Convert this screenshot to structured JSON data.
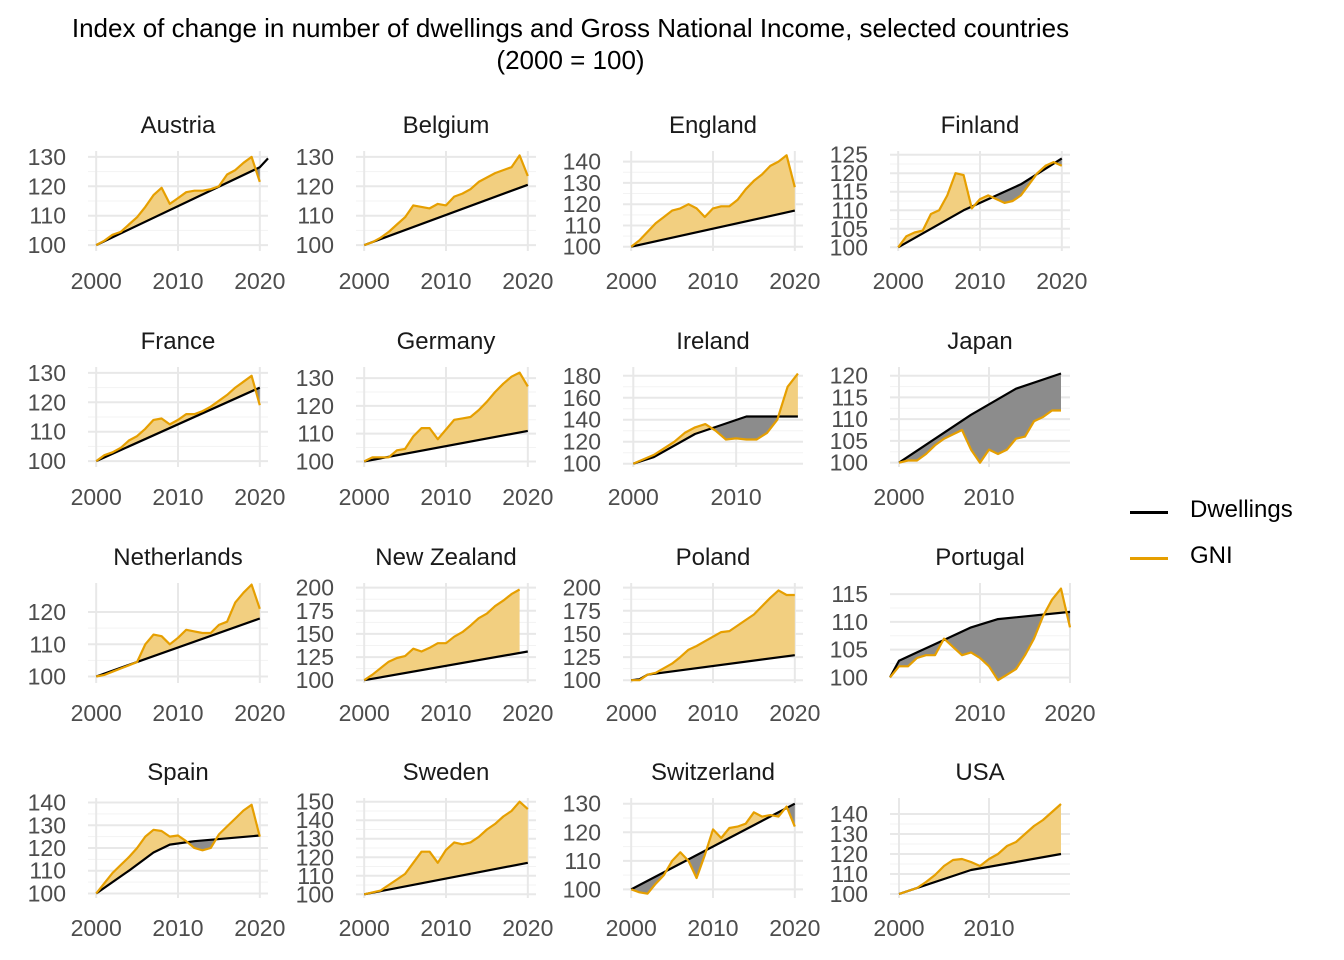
{
  "chart_data": {
    "type": "area",
    "title": "Index of change in number of dwellings and Gross National Income, selected countries\n(2000 = 100)",
    "legend": {
      "position": "right",
      "items": [
        {
          "name": "Dwellings",
          "color": "#000000"
        },
        {
          "name": "GNI",
          "color": "#E69F00"
        }
      ]
    },
    "colors": {
      "dwellings": "#000000",
      "gni": "#E69F00",
      "gni_above_fill": "#F2CF80",
      "dwellings_above_fill": "#8C8C8C",
      "grid": "#E8E8E8"
    },
    "grid": true,
    "panels": [
      {
        "country": "Austria",
        "xlim": [
          1999,
          2021
        ],
        "xticks": [
          2000,
          2010,
          2020
        ],
        "ylim": [
          98,
          132
        ],
        "yticks": [
          100,
          110,
          120,
          130
        ],
        "x_dw": [
          2000,
          2020,
          2021
        ],
        "dwellings": [
          100,
          126.5,
          129.5
        ],
        "x_gni": [
          2000,
          2001,
          2002,
          2003,
          2004,
          2005,
          2006,
          2007,
          2008,
          2009,
          2010,
          2011,
          2012,
          2013,
          2014,
          2015,
          2016,
          2017,
          2018,
          2019,
          2020
        ],
        "gni": [
          100,
          101.5,
          103.5,
          104.5,
          107,
          109.5,
          113,
          117,
          119.5,
          114,
          116,
          118,
          118.5,
          118.5,
          119,
          120,
          124,
          125.5,
          128,
          130,
          121.5
        ]
      },
      {
        "country": "Belgium",
        "xlim": [
          1999,
          2021
        ],
        "xticks": [
          2000,
          2010,
          2020
        ],
        "ylim": [
          98,
          132
        ],
        "yticks": [
          100,
          110,
          120,
          130
        ],
        "x_dw": [
          2000,
          2020
        ],
        "dwellings": [
          100,
          120.5
        ],
        "x_gni": [
          2000,
          2001,
          2002,
          2003,
          2004,
          2005,
          2006,
          2007,
          2008,
          2009,
          2010,
          2011,
          2012,
          2013,
          2014,
          2015,
          2016,
          2017,
          2018,
          2019,
          2020
        ],
        "gni": [
          100,
          101,
          102.5,
          104.5,
          107,
          109.5,
          113.5,
          113,
          112.5,
          114,
          113.5,
          116.5,
          117.5,
          119,
          121.5,
          123,
          124.5,
          125.5,
          126.5,
          130.5,
          123.5
        ]
      },
      {
        "country": "England",
        "xlim": [
          1999,
          2021
        ],
        "xticks": [
          2000,
          2010,
          2020
        ],
        "ylim": [
          98,
          145
        ],
        "yticks": [
          100,
          110,
          120,
          130,
          140
        ],
        "x_dw": [
          2000,
          2020
        ],
        "dwellings": [
          100,
          117
        ],
        "x_gni": [
          2000,
          2001,
          2002,
          2003,
          2004,
          2005,
          2006,
          2007,
          2008,
          2009,
          2010,
          2011,
          2012,
          2013,
          2014,
          2015,
          2016,
          2017,
          2018,
          2019,
          2020
        ],
        "gni": [
          100,
          103,
          107,
          111,
          114,
          117,
          118,
          120,
          118,
          114,
          118,
          119,
          119,
          122,
          127,
          131,
          134,
          138,
          140,
          143,
          128
        ]
      },
      {
        "country": "Finland",
        "xlim": [
          1999,
          2021
        ],
        "xticks": [
          2000,
          2010,
          2020
        ],
        "ylim": [
          99,
          126
        ],
        "yticks": [
          100,
          105,
          110,
          115,
          120,
          125
        ],
        "x_dw": [
          2000,
          2008,
          2010,
          2013,
          2015,
          2020
        ],
        "dwellings": [
          100,
          110,
          112,
          115,
          117,
          124
        ],
        "x_gni": [
          2000,
          2001,
          2002,
          2003,
          2004,
          2005,
          2006,
          2007,
          2008,
          2009,
          2010,
          2011,
          2012,
          2013,
          2014,
          2015,
          2016,
          2017,
          2018,
          2019,
          2020
        ],
        "gni": [
          100,
          103,
          104,
          104.5,
          109,
          110,
          114,
          120,
          119.5,
          110.5,
          113,
          114,
          113,
          112,
          112.5,
          114,
          117,
          120,
          122,
          123,
          122
        ]
      },
      {
        "country": "France",
        "xlim": [
          1999,
          2021
        ],
        "xticks": [
          2000,
          2010,
          2020
        ],
        "ylim": [
          98,
          132
        ],
        "yticks": [
          100,
          110,
          120,
          130
        ],
        "x_dw": [
          2000,
          2020
        ],
        "dwellings": [
          100,
          125
        ],
        "x_gni": [
          2000,
          2001,
          2002,
          2003,
          2004,
          2005,
          2006,
          2007,
          2008,
          2009,
          2010,
          2011,
          2012,
          2013,
          2014,
          2015,
          2016,
          2017,
          2018,
          2019,
          2020
        ],
        "gni": [
          100,
          102,
          103,
          104.5,
          107,
          108.5,
          111,
          114,
          114.5,
          112.5,
          114,
          116,
          116,
          117,
          118.5,
          120.5,
          122.5,
          125,
          127,
          129,
          119
        ]
      },
      {
        "country": "Germany",
        "xlim": [
          1999,
          2021
        ],
        "xticks": [
          2000,
          2010,
          2020
        ],
        "ylim": [
          98,
          134
        ],
        "yticks": [
          100,
          110,
          120,
          130
        ],
        "x_dw": [
          2000,
          2020
        ],
        "dwellings": [
          100,
          111
        ],
        "x_gni": [
          2000,
          2001,
          2002,
          2003,
          2004,
          2005,
          2006,
          2007,
          2008,
          2009,
          2010,
          2011,
          2012,
          2013,
          2014,
          2015,
          2016,
          2017,
          2018,
          2019,
          2020
        ],
        "gni": [
          100,
          101.5,
          101.5,
          101.5,
          104,
          104.5,
          109,
          112,
          112,
          108,
          111.5,
          115,
          115.5,
          116,
          118.5,
          121.5,
          125,
          128,
          130.5,
          132,
          127
        ]
      },
      {
        "country": "Ireland",
        "xlim": [
          1999,
          2016.5
        ],
        "xticks": [
          2000,
          2010
        ],
        "ylim": [
          97,
          188
        ],
        "yticks": [
          100,
          120,
          140,
          160,
          180
        ],
        "x_dw": [
          2000,
          2002,
          2006,
          2011,
          2016
        ],
        "dwellings": [
          100,
          106,
          127,
          143,
          143
        ],
        "x_gni": [
          2000,
          2001,
          2002,
          2003,
          2004,
          2005,
          2006,
          2007,
          2008,
          2009,
          2010,
          2011,
          2012,
          2013,
          2014,
          2015,
          2016
        ],
        "gni": [
          100,
          104,
          108,
          114,
          120,
          128,
          133,
          136,
          130,
          122,
          123,
          122,
          122,
          128,
          140,
          170,
          182
        ]
      },
      {
        "country": "Japan",
        "xlim": [
          1999,
          2019
        ],
        "xticks": [
          2000,
          2010
        ],
        "ylim": [
          99,
          122
        ],
        "yticks": [
          100,
          105,
          110,
          115,
          120
        ],
        "x_dw": [
          2000,
          2008,
          2013,
          2018
        ],
        "dwellings": [
          100,
          111,
          117,
          120.5
        ],
        "x_gni": [
          2000,
          2001,
          2002,
          2003,
          2004,
          2005,
          2006,
          2007,
          2008,
          2009,
          2010,
          2011,
          2012,
          2013,
          2014,
          2015,
          2016,
          2017,
          2018
        ],
        "gni": [
          100,
          100.5,
          100.5,
          102,
          104,
          105.5,
          106.5,
          107.5,
          103,
          100,
          103,
          102,
          103,
          105.5,
          106,
          109.5,
          110.5,
          112,
          112
        ]
      },
      {
        "country": "Netherlands",
        "xlim": [
          1999,
          2021
        ],
        "xticks": [
          2000,
          2010,
          2020
        ],
        "ylim": [
          98,
          129
        ],
        "yticks": [
          100,
          110,
          120
        ],
        "x_dw": [
          2000,
          2020
        ],
        "dwellings": [
          100,
          118
        ],
        "x_gni": [
          2000,
          2001,
          2002,
          2003,
          2004,
          2005,
          2006,
          2007,
          2008,
          2009,
          2010,
          2011,
          2012,
          2013,
          2014,
          2015,
          2016,
          2017,
          2018,
          2019,
          2020
        ],
        "gni": [
          100,
          100.5,
          101.5,
          102.5,
          103.5,
          104.5,
          110,
          113,
          112.5,
          110,
          112,
          114.5,
          114,
          113.5,
          113.5,
          116,
          117,
          123,
          126,
          128.5,
          121
        ]
      },
      {
        "country": "New Zealand",
        "xlim": [
          1999,
          2021
        ],
        "xticks": [
          2000,
          2010,
          2020
        ],
        "ylim": [
          97,
          205
        ],
        "yticks": [
          100,
          125,
          150,
          175,
          200
        ],
        "x_dw": [
          2000,
          2020
        ],
        "dwellings": [
          100,
          131
        ],
        "x_gni": [
          2000,
          2001,
          2002,
          2003,
          2004,
          2005,
          2006,
          2007,
          2008,
          2009,
          2010,
          2011,
          2012,
          2013,
          2014,
          2015,
          2016,
          2017,
          2018,
          2019
        ],
        "gni": [
          100,
          106,
          113,
          120,
          124,
          126,
          134,
          131,
          135,
          140,
          140,
          147,
          152,
          159,
          167,
          172,
          180,
          186,
          193,
          198
        ]
      },
      {
        "country": "Poland",
        "xlim": [
          1999,
          2021
        ],
        "xticks": [
          2000,
          2010,
          2020
        ],
        "ylim": [
          97,
          205
        ],
        "yticks": [
          100,
          125,
          150,
          175,
          200
        ],
        "x_dw": [
          2000,
          2001,
          2002,
          2020
        ],
        "dwellings": [
          100,
          101,
          106,
          127
        ],
        "x_gni": [
          2000,
          2001,
          2002,
          2003,
          2004,
          2005,
          2006,
          2007,
          2008,
          2009,
          2010,
          2011,
          2012,
          2013,
          2014,
          2015,
          2016,
          2017,
          2018,
          2019,
          2020
        ],
        "gni": [
          100,
          100,
          106,
          108,
          113,
          118,
          125,
          133,
          137,
          142,
          147,
          152,
          153,
          159,
          165,
          171,
          180,
          189,
          197,
          192,
          192
        ]
      },
      {
        "country": "Portugal",
        "xlim": [
          2000,
          2020
        ],
        "xticks": [
          2010,
          2020
        ],
        "ylim": [
          99,
          117
        ],
        "yticks": [
          100,
          105,
          110,
          115
        ],
        "x_dw": [
          2000,
          2001,
          2003,
          2005,
          2007,
          2009,
          2012,
          2020
        ],
        "dwellings": [
          100,
          103,
          104.5,
          106,
          107.5,
          109,
          110.5,
          111.8
        ],
        "x_gni": [
          2000,
          2001,
          2002,
          2003,
          2004,
          2005,
          2006,
          2007,
          2008,
          2009,
          2010,
          2011,
          2012,
          2013,
          2014,
          2015,
          2016,
          2017,
          2018,
          2019,
          2020
        ],
        "gni": [
          100,
          102,
          102,
          103.5,
          104,
          104,
          107,
          105.5,
          104,
          104.5,
          103.5,
          102,
          99.5,
          100.5,
          101.5,
          104,
          107,
          111,
          114,
          116,
          109
        ]
      },
      {
        "country": "Spain",
        "xlim": [
          1999,
          2021
        ],
        "xticks": [
          2000,
          2010,
          2020
        ],
        "ylim": [
          98,
          142
        ],
        "yticks": [
          100,
          110,
          120,
          130,
          140
        ],
        "x_dw": [
          2000,
          2004,
          2007,
          2009,
          2012,
          2020
        ],
        "dwellings": [
          100,
          110,
          118,
          121.5,
          123,
          125.5
        ],
        "x_gni": [
          2000,
          2001,
          2002,
          2003,
          2004,
          2005,
          2006,
          2007,
          2008,
          2009,
          2010,
          2011,
          2012,
          2013,
          2014,
          2015,
          2016,
          2017,
          2018,
          2019,
          2020
        ],
        "gni": [
          100,
          104.5,
          109,
          112.5,
          116,
          120,
          125,
          128,
          127.5,
          125,
          125.5,
          123,
          120,
          119,
          120,
          126,
          129.5,
          133,
          136.5,
          139,
          125
        ]
      },
      {
        "country": "Sweden",
        "xlim": [
          1999,
          2021
        ],
        "xticks": [
          2000,
          2010,
          2020
        ],
        "ylim": [
          98,
          152
        ],
        "yticks": [
          100,
          110,
          120,
          130,
          140,
          150
        ],
        "x_dw": [
          2000,
          2020
        ],
        "dwellings": [
          100,
          117
        ],
        "x_gni": [
          2000,
          2001,
          2002,
          2003,
          2004,
          2005,
          2006,
          2007,
          2008,
          2009,
          2010,
          2011,
          2012,
          2013,
          2014,
          2015,
          2016,
          2017,
          2018,
          2019,
          2020
        ],
        "gni": [
          100,
          101,
          102,
          105,
          108,
          111,
          117,
          123,
          123,
          117,
          124,
          128,
          127,
          128,
          131,
          135,
          138,
          142,
          145,
          150,
          146
        ]
      },
      {
        "country": "Switzerland",
        "xlim": [
          1999,
          2021
        ],
        "xticks": [
          2000,
          2010,
          2020
        ],
        "ylim": [
          97,
          132
        ],
        "yticks": [
          100,
          110,
          120,
          130
        ],
        "x_dw": [
          2000,
          2020
        ],
        "dwellings": [
          100,
          130
        ],
        "x_gni": [
          2000,
          2001,
          2002,
          2003,
          2004,
          2005,
          2006,
          2007,
          2008,
          2009,
          2010,
          2011,
          2012,
          2013,
          2014,
          2015,
          2016,
          2017,
          2018,
          2019,
          2020
        ],
        "gni": [
          100,
          99,
          98.5,
          102,
          105,
          110,
          113,
          110,
          104,
          112,
          121,
          118,
          121.5,
          122,
          123,
          127,
          125.5,
          126,
          125.5,
          129,
          122
        ]
      },
      {
        "country": "USA",
        "xlim": [
          1999,
          2019
        ],
        "xticks": [
          2000,
          2010
        ],
        "ylim": [
          98,
          148
        ],
        "yticks": [
          100,
          110,
          120,
          130,
          140
        ],
        "x_dw": [
          2000,
          2008,
          2018
        ],
        "dwellings": [
          100,
          112,
          120
        ],
        "x_gni": [
          2000,
          2001,
          2002,
          2003,
          2004,
          2005,
          2006,
          2007,
          2008,
          2009,
          2010,
          2011,
          2012,
          2013,
          2014,
          2015,
          2016,
          2017,
          2018
        ],
        "gni": [
          100,
          101.5,
          103,
          106,
          109.5,
          114,
          117,
          117.5,
          116,
          114,
          117.5,
          120,
          124,
          126,
          130,
          134,
          137,
          141,
          145
        ]
      }
    ]
  }
}
